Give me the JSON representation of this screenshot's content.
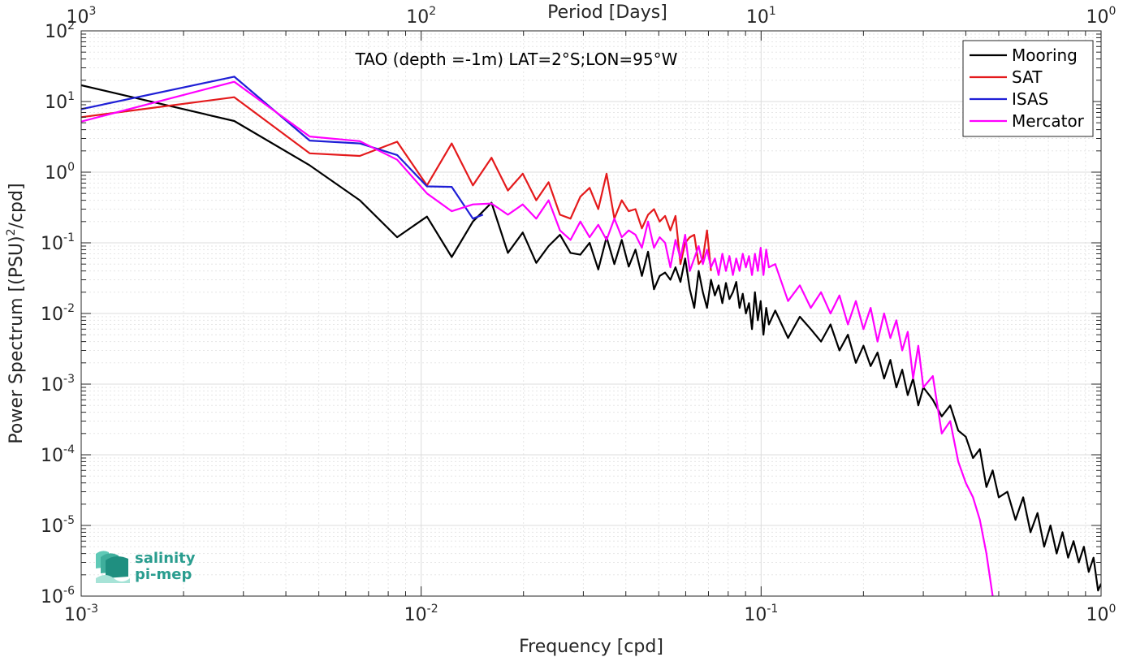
{
  "chart_data": {
    "type": "line",
    "title": "TAO (depth =-1m) LAT=2°S;LON=95°W",
    "xlabel": "Frequency [cpd]",
    "ylabel": "Power Spectrum [(PSU)²/cpd]",
    "ylabel_parts": {
      "pre": "Power Spectrum [(PSU)",
      "sup": "2",
      "post": "/cpd]"
    },
    "top_axis_label": "Period [Days]",
    "xscale": "log",
    "yscale": "log",
    "xlim": [
      0.001,
      1
    ],
    "ylim": [
      1e-06,
      100
    ],
    "grid": true,
    "legend_position": "top-right",
    "x_ticks": [
      {
        "value": 0.001,
        "base": "10",
        "exp": "-3"
      },
      {
        "value": 0.01,
        "base": "10",
        "exp": "-2"
      },
      {
        "value": 0.1,
        "base": "10",
        "exp": "-1"
      },
      {
        "value": 1,
        "base": "10",
        "exp": "0"
      }
    ],
    "top_ticks": [
      {
        "value": 0.001,
        "base": "10",
        "exp": "3"
      },
      {
        "value": 0.01,
        "base": "10",
        "exp": "2"
      },
      {
        "value": 0.1,
        "base": "10",
        "exp": "1"
      },
      {
        "value": 1,
        "base": "10",
        "exp": "0"
      }
    ],
    "y_ticks": [
      {
        "value": 100,
        "base": "10",
        "exp": "2"
      },
      {
        "value": 10,
        "base": "10",
        "exp": "1"
      },
      {
        "value": 1,
        "base": "10",
        "exp": "0"
      },
      {
        "value": 0.1,
        "base": "10",
        "exp": "-1"
      },
      {
        "value": 0.01,
        "base": "10",
        "exp": "-2"
      },
      {
        "value": 0.001,
        "base": "10",
        "exp": "-3"
      },
      {
        "value": 0.0001,
        "base": "10",
        "exp": "-4"
      },
      {
        "value": 1e-05,
        "base": "10",
        "exp": "-5"
      },
      {
        "value": 1e-06,
        "base": "10",
        "exp": "-6"
      }
    ],
    "series": [
      {
        "name": "Mooring",
        "color": "#000000",
        "x": [
          0.001,
          0.00282,
          0.0047,
          0.0066,
          0.0085,
          0.0104,
          0.0123,
          0.0142,
          0.0161,
          0.018,
          0.0199,
          0.0218,
          0.0237,
          0.0256,
          0.0275,
          0.0294,
          0.0313,
          0.0332,
          0.0351,
          0.037,
          0.0389,
          0.0408,
          0.0427,
          0.0446,
          0.0465,
          0.0484,
          0.0503,
          0.0522,
          0.0541,
          0.056,
          0.0579,
          0.0598,
          0.0617,
          0.0636,
          0.0655,
          0.0674,
          0.0693,
          0.0712,
          0.0731,
          0.075,
          0.0769,
          0.0788,
          0.0807,
          0.0826,
          0.0845,
          0.0864,
          0.0883,
          0.0902,
          0.0921,
          0.094,
          0.0959,
          0.0978,
          0.0997,
          0.1016,
          0.1035,
          0.1054,
          0.11,
          0.12,
          0.13,
          0.14,
          0.15,
          0.16,
          0.17,
          0.18,
          0.19,
          0.2,
          0.21,
          0.22,
          0.23,
          0.24,
          0.25,
          0.26,
          0.27,
          0.28,
          0.29,
          0.3,
          0.32,
          0.34,
          0.36,
          0.38,
          0.4,
          0.42,
          0.44,
          0.46,
          0.48,
          0.5,
          0.53,
          0.56,
          0.59,
          0.62,
          0.65,
          0.68,
          0.71,
          0.74,
          0.77,
          0.8,
          0.83,
          0.86,
          0.89,
          0.92,
          0.95,
          0.98,
          1.0
        ],
        "y": [
          17,
          5.3,
          1.25,
          0.4,
          0.12,
          0.235,
          0.063,
          0.2,
          0.37,
          0.072,
          0.14,
          0.052,
          0.09,
          0.13,
          0.072,
          0.068,
          0.1,
          0.042,
          0.12,
          0.05,
          0.11,
          0.046,
          0.08,
          0.034,
          0.075,
          0.022,
          0.034,
          0.038,
          0.03,
          0.045,
          0.028,
          0.06,
          0.022,
          0.012,
          0.04,
          0.02,
          0.012,
          0.03,
          0.018,
          0.025,
          0.014,
          0.027,
          0.016,
          0.02,
          0.028,
          0.012,
          0.019,
          0.01,
          0.014,
          0.006,
          0.02,
          0.008,
          0.015,
          0.005,
          0.012,
          0.007,
          0.011,
          0.0045,
          0.009,
          0.006,
          0.004,
          0.007,
          0.003,
          0.005,
          0.002,
          0.0035,
          0.0018,
          0.0028,
          0.0012,
          0.0022,
          0.0009,
          0.0016,
          0.0007,
          0.0012,
          0.0005,
          0.0009,
          0.0006,
          0.00035,
          0.0005,
          0.00022,
          0.00018,
          9e-05,
          0.00012,
          3.5e-05,
          6e-05,
          2.5e-05,
          3e-05,
          1.2e-05,
          2.5e-05,
          8e-06,
          1.5e-05,
          5e-06,
          1e-05,
          4e-06,
          8e-06,
          3.5e-06,
          6e-06,
          3e-06,
          5e-06,
          2.2e-06,
          3.5e-06,
          1.2e-06,
          1.5e-06
        ]
      },
      {
        "name": "SAT",
        "color": "#e41a1c",
        "x": [
          0.001,
          0.00282,
          0.0047,
          0.0066,
          0.0085,
          0.0104,
          0.0123,
          0.0142,
          0.0161,
          0.018,
          0.0199,
          0.0218,
          0.0237,
          0.0256,
          0.0275,
          0.0294,
          0.0313,
          0.0332,
          0.0351,
          0.037,
          0.0389,
          0.0408,
          0.0427,
          0.0446,
          0.0465,
          0.0484,
          0.0503,
          0.0522,
          0.0541,
          0.056,
          0.0579,
          0.0598,
          0.0617,
          0.0636,
          0.0655,
          0.0674,
          0.0693,
          0.0712
        ],
        "y": [
          6,
          11.5,
          1.85,
          1.7,
          2.7,
          0.65,
          2.55,
          0.65,
          1.6,
          0.55,
          0.95,
          0.4,
          0.72,
          0.25,
          0.22,
          0.45,
          0.6,
          0.3,
          0.95,
          0.22,
          0.4,
          0.28,
          0.3,
          0.16,
          0.25,
          0.3,
          0.2,
          0.24,
          0.15,
          0.24,
          0.05,
          0.1,
          0.12,
          0.13,
          0.05,
          0.06,
          0.15,
          0.04
        ]
      },
      {
        "name": "ISAS",
        "color": "#1f1fd6",
        "x": [
          0.001,
          0.00282,
          0.0047,
          0.0066,
          0.0085,
          0.0104,
          0.0123,
          0.0142,
          0.0152
        ],
        "y": [
          7.8,
          22.5,
          2.8,
          2.55,
          1.75,
          0.63,
          0.62,
          0.22,
          0.25
        ]
      },
      {
        "name": "Mercator",
        "color": "#ff00ff",
        "x": [
          0.001,
          0.00282,
          0.0047,
          0.0066,
          0.0085,
          0.0104,
          0.0123,
          0.0142,
          0.0161,
          0.018,
          0.0199,
          0.0218,
          0.0237,
          0.0256,
          0.0275,
          0.0294,
          0.0313,
          0.0332,
          0.0351,
          0.037,
          0.0389,
          0.0408,
          0.0427,
          0.0446,
          0.0465,
          0.0484,
          0.0503,
          0.0522,
          0.0541,
          0.056,
          0.0579,
          0.0598,
          0.0617,
          0.0636,
          0.0655,
          0.0674,
          0.0693,
          0.0712,
          0.0731,
          0.075,
          0.0769,
          0.0788,
          0.0807,
          0.0826,
          0.0845,
          0.0864,
          0.0883,
          0.0902,
          0.0921,
          0.094,
          0.0959,
          0.0978,
          0.0997,
          0.1016,
          0.1035,
          0.1054,
          0.11,
          0.12,
          0.13,
          0.14,
          0.15,
          0.16,
          0.17,
          0.18,
          0.19,
          0.2,
          0.21,
          0.22,
          0.23,
          0.24,
          0.25,
          0.26,
          0.27,
          0.28,
          0.29,
          0.3,
          0.32,
          0.34,
          0.36,
          0.38,
          0.4,
          0.42,
          0.44,
          0.46,
          0.48
        ],
        "y": [
          5.2,
          19,
          3.2,
          2.75,
          1.5,
          0.5,
          0.28,
          0.35,
          0.36,
          0.25,
          0.35,
          0.22,
          0.4,
          0.15,
          0.11,
          0.2,
          0.12,
          0.18,
          0.11,
          0.22,
          0.12,
          0.15,
          0.13,
          0.085,
          0.2,
          0.085,
          0.12,
          0.1,
          0.045,
          0.11,
          0.06,
          0.13,
          0.04,
          0.06,
          0.09,
          0.05,
          0.08,
          0.045,
          0.06,
          0.035,
          0.07,
          0.04,
          0.065,
          0.035,
          0.06,
          0.04,
          0.07,
          0.045,
          0.065,
          0.035,
          0.07,
          0.04,
          0.085,
          0.035,
          0.08,
          0.045,
          0.05,
          0.015,
          0.025,
          0.012,
          0.02,
          0.01,
          0.018,
          0.007,
          0.015,
          0.006,
          0.012,
          0.004,
          0.01,
          0.0045,
          0.008,
          0.003,
          0.0055,
          0.0012,
          0.0035,
          0.0009,
          0.0013,
          0.0002,
          0.0003,
          8e-05,
          4e-05,
          2.5e-05,
          1.2e-05,
          4e-06,
          1e-06
        ]
      }
    ]
  },
  "logo": {
    "line1": "salinity",
    "line2": "pi-mep"
  }
}
